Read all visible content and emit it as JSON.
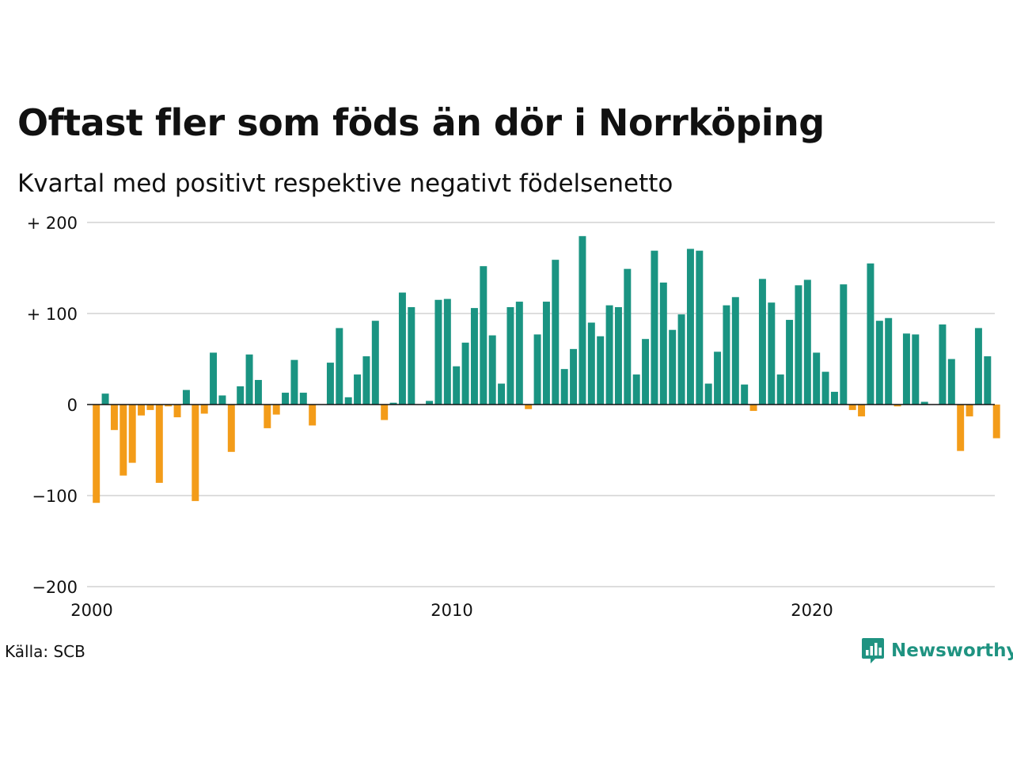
{
  "title": "Oftast fler som föds än dör i Norrköping",
  "subtitle": "Kvartal med positivt respektive negativt födelsenetto",
  "source": "Källa: SCB",
  "logo": {
    "text": "Newsworthy",
    "icon": "newsworthy-logo-icon"
  },
  "colors": {
    "positive": "#1a9482",
    "negative": "#f39c19",
    "grid": "#dddddd",
    "zero_line": "#111111"
  },
  "chart_data": {
    "type": "bar",
    "x_start": 2000,
    "x_step": 0.25,
    "xlim": [
      2000,
      2025
    ],
    "ylim": [
      -200,
      200
    ],
    "x_ticks": [
      2000,
      2010,
      2020
    ],
    "y_ticks": [
      {
        "value": 200,
        "label": "+ 200"
      },
      {
        "value": 100,
        "label": "+ 100"
      },
      {
        "value": 0,
        "label": "0"
      },
      {
        "value": -100,
        "label": "−100"
      },
      {
        "value": -200,
        "label": "−200"
      }
    ],
    "grid": true,
    "values": [
      -108,
      12,
      -28,
      -78,
      -64,
      -12,
      -6,
      -86,
      -2,
      -14,
      16,
      -106,
      -10,
      57,
      10,
      -52,
      20,
      55,
      27,
      -26,
      -11,
      13,
      49,
      13,
      -23,
      0,
      46,
      84,
      8,
      33,
      53,
      92,
      -17,
      2,
      123,
      107,
      0,
      4,
      115,
      116,
      42,
      68,
      106,
      152,
      76,
      23,
      107,
      113,
      -5,
      77,
      113,
      159,
      39,
      61,
      185,
      90,
      75,
      109,
      107,
      149,
      33,
      72,
      169,
      134,
      82,
      99,
      171,
      169,
      23,
      58,
      109,
      118,
      22,
      -7,
      138,
      112,
      33,
      93,
      131,
      137,
      57,
      36,
      14,
      132,
      -6,
      -13,
      155,
      92,
      95,
      -2,
      78,
      77,
      3,
      0,
      88,
      50,
      -51,
      -13,
      84,
      53,
      -37
    ]
  }
}
